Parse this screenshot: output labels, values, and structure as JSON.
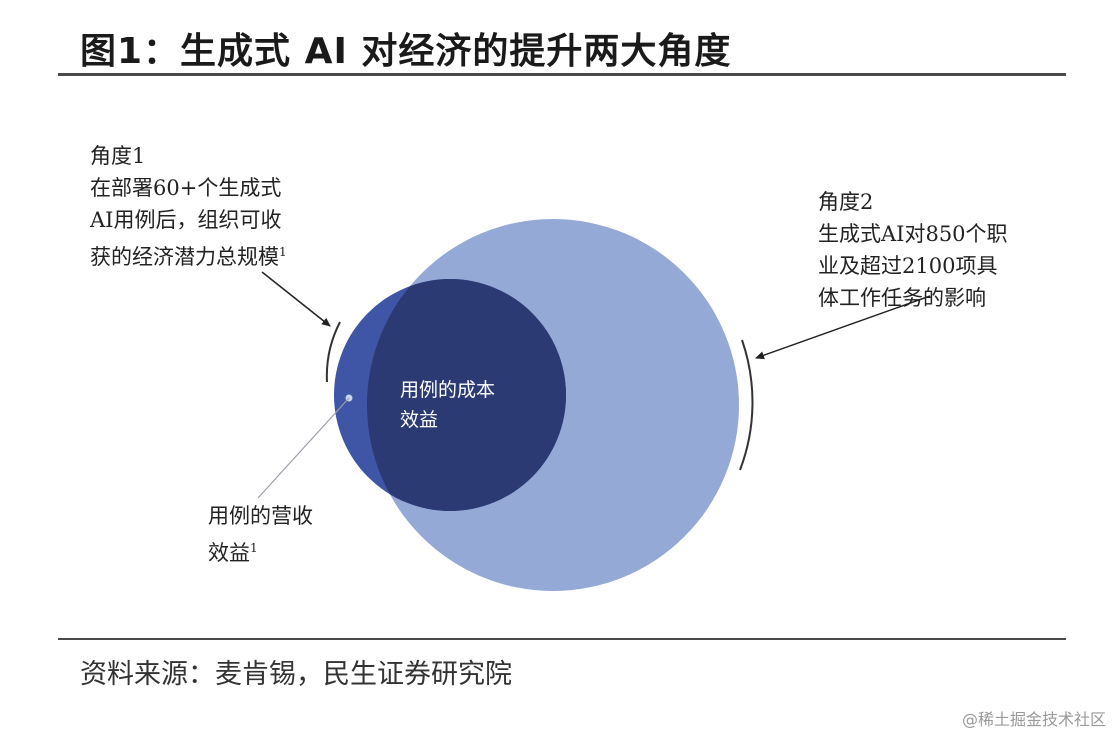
{
  "title": "图1：生成式 AI 对经济的提升两大角度",
  "angle1": {
    "heading": "角度1",
    "lines": [
      "在部署60+个生成式",
      "AI用例后，组织可收",
      "获的经济潜力总规模"
    ],
    "footnote": "1"
  },
  "angle2": {
    "heading": "角度2",
    "lines": [
      "生成式AI对850个职",
      "业及超过2100项具",
      "体工作任务的影响"
    ]
  },
  "cost_benefit": {
    "lines": [
      "用例的成本",
      "效益"
    ]
  },
  "revenue_benefit": {
    "lines": [
      "用例的营收",
      "效益"
    ],
    "footnote": "1"
  },
  "source": "资料来源：麦肯锡，民生证券研究院",
  "watermark": "@稀土掘金技术社区",
  "colors": {
    "large_circle": "#94a9d6",
    "medium_circle": "#3f55a6",
    "dark_circle": "#2c3a73",
    "rule": "#4a4a4a"
  }
}
